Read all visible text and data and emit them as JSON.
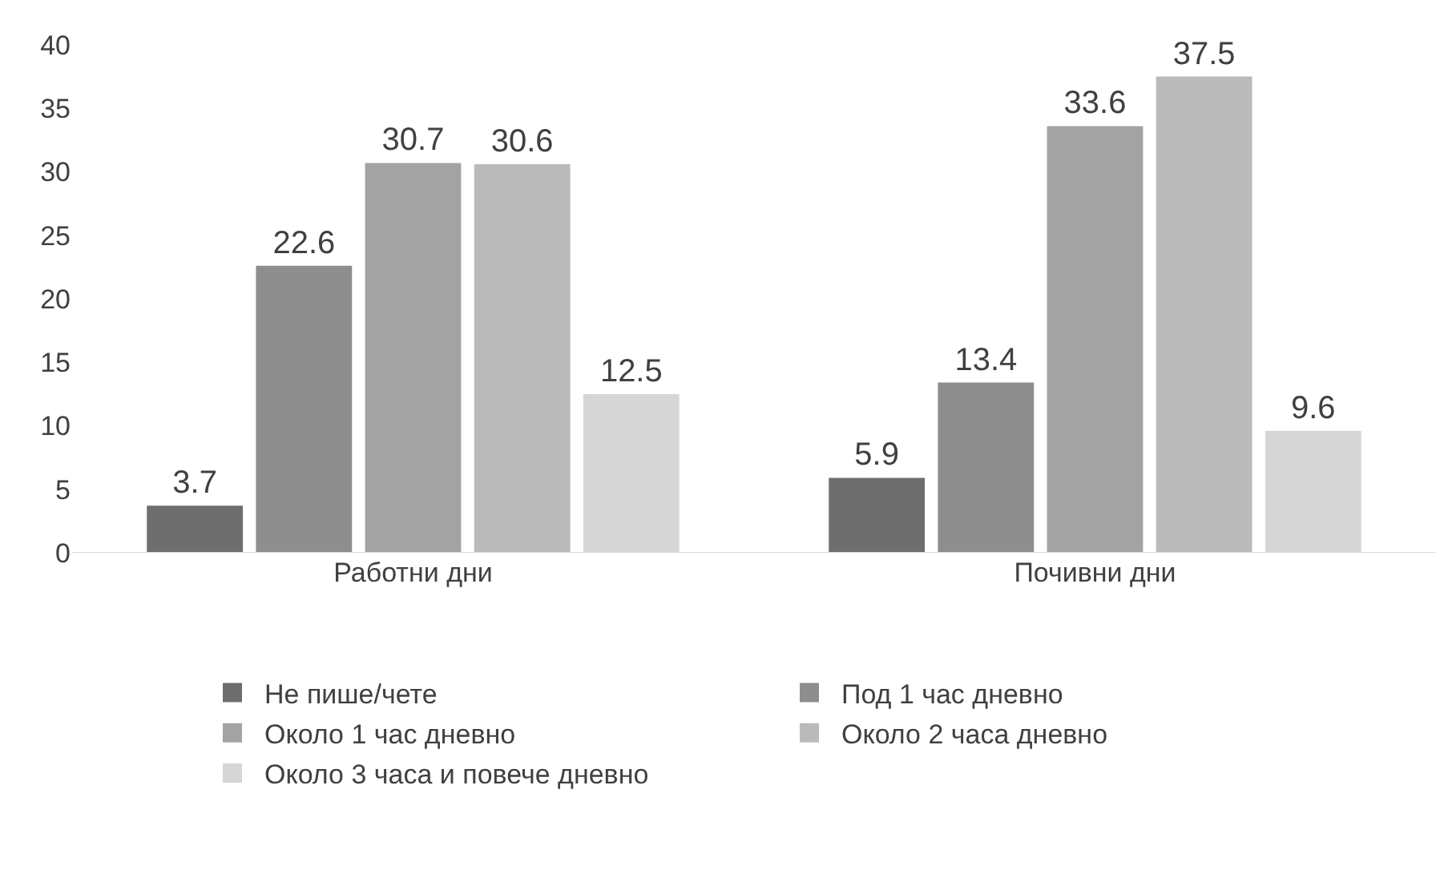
{
  "chart_data": {
    "type": "bar",
    "categories": [
      "Работни дни",
      "Почивни дни"
    ],
    "series": [
      {
        "name": "Не пише/чете",
        "color": "#6e6e6e",
        "values": [
          3.7,
          5.9
        ]
      },
      {
        "name": "Под 1 час дневно",
        "color": "#8e8e8e",
        "values": [
          22.6,
          13.4
        ]
      },
      {
        "name": "Около 1 час дневно",
        "color": "#a3a3a3",
        "values": [
          30.7,
          33.6
        ]
      },
      {
        "name": "Около 2 часа дневно",
        "color": "#bababa",
        "values": [
          30.6,
          37.5
        ]
      },
      {
        "name": "Около 3 часа и повече дневно",
        "color": "#d6d6d6",
        "values": [
          12.5,
          9.6
        ]
      }
    ],
    "ylim": [
      0,
      40
    ],
    "yticks": [
      0,
      5,
      10,
      15,
      20,
      25,
      30,
      35,
      40
    ],
    "grid": false,
    "legend": "bottom",
    "data_labels": true
  }
}
